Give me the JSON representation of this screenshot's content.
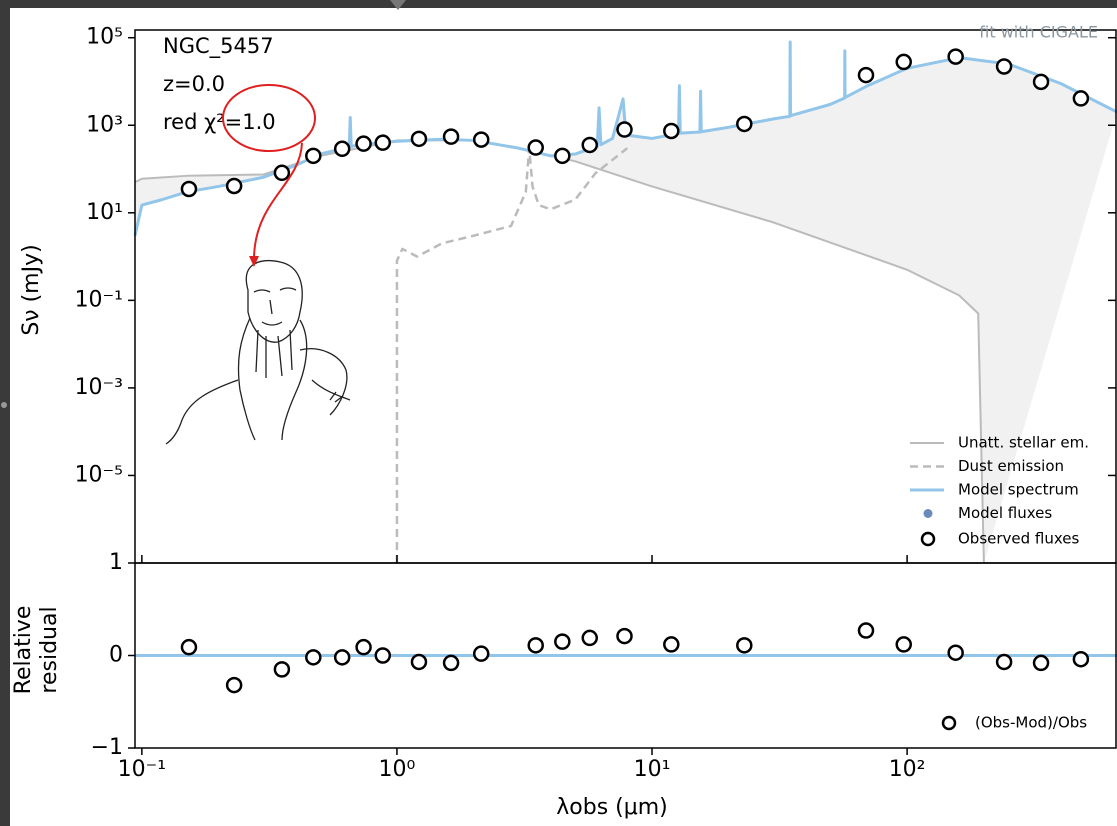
{
  "chart_data": [
    {
      "type": "line",
      "xscale": "log",
      "yscale": "log",
      "xlim": [
        0.094,
        665
      ],
      "ylim": [
        1e-07,
        150000
      ],
      "yticks": [
        {
          "value": 100000,
          "label": "10⁵"
        },
        {
          "value": 1000,
          "label": "10³"
        },
        {
          "value": 10,
          "label": "10¹"
        },
        {
          "value": 0.1,
          "label": "10⁻¹"
        },
        {
          "value": 0.001,
          "label": "10⁻³"
        },
        {
          "value": 1e-05,
          "label": "10⁻⁵"
        }
      ],
      "ylabel": "Sν (mJy)",
      "text_lines": [
        "NGC_5457",
        "z=0.0",
        "red χ²=1.0"
      ],
      "corner_note": "fit with CIGALE",
      "legend": "lower right",
      "series": [
        {
          "name": "Unatt. stellar em.",
          "color": "#bbbbbb",
          "style": "solid",
          "x": [
            0.094,
            0.1,
            0.15,
            0.3,
            0.5,
            1,
            2,
            3,
            5,
            10,
            30,
            100,
            160,
            190,
            200
          ],
          "values": [
            50,
            60,
            70,
            75,
            200,
            450,
            450,
            300,
            150,
            40,
            6,
            0.5,
            0.13,
            0.05,
            1e-07
          ]
        },
        {
          "name": "Dust emission",
          "color": "#bbbbbb",
          "style": "dashed",
          "x": [
            1,
            1,
            1.05,
            1.2,
            1.5,
            2,
            2.8,
            3.2,
            3.3,
            3.4,
            3.6,
            4,
            5,
            6,
            8
          ],
          "values": [
            1e-07,
            0.8,
            1.5,
            1,
            2,
            3,
            5,
            30,
            300,
            40,
            15,
            12,
            20,
            80,
            300
          ]
        },
        {
          "name": "Model spectrum",
          "color": "#92c5ea",
          "style": "thick",
          "x": [
            0.094,
            0.1,
            0.12,
            0.15,
            0.2,
            0.3,
            0.4,
            0.5,
            0.65,
            0.656,
            0.662,
            0.7,
            1.0,
            1.5,
            2,
            3,
            4,
            5,
            6.1,
            6.2,
            6.3,
            7,
            7.7,
            7.9,
            10,
            12.7,
            12.8,
            12.9,
            15.4,
            15.5,
            15.6,
            20,
            30,
            34.7,
            34.8,
            34.9,
            50,
            56.9,
            57,
            57.1,
            70,
            100,
            160,
            250,
            400,
            665
          ],
          "values": [
            3,
            15,
            20,
            30,
            40,
            65,
            120,
            220,
            320,
            1500,
            330,
            350,
            430,
            480,
            450,
            300,
            200,
            220,
            330,
            2500,
            360,
            500,
            4000,
            600,
            500,
            650,
            8000,
            660,
            700,
            6000,
            710,
            900,
            1400,
            1600,
            80000,
            1650,
            3000,
            4200,
            50000,
            4300,
            8000,
            20000,
            35000,
            25000,
            9000,
            2000
          ]
        },
        {
          "name": "Model fluxes",
          "color": "#6b8cba",
          "style": "dot"
        },
        {
          "name": "Observed fluxes",
          "color": "#000000",
          "style": "open-circle",
          "x": [
            0.153,
            0.23,
            0.354,
            0.47,
            0.61,
            0.74,
            0.88,
            1.22,
            1.63,
            2.14,
            3.5,
            4.45,
            5.7,
            7.8,
            11.9,
            23,
            69,
            97,
            155,
            240,
            335,
            480
          ],
          "values": [
            35,
            41,
            82,
            200,
            290,
            380,
            400,
            490,
            550,
            470,
            310,
            200,
            355,
            800,
            740,
            1070,
            14000,
            28000,
            37000,
            22000,
            9800,
            4100
          ]
        }
      ]
    },
    {
      "type": "scatter",
      "xscale": "log",
      "xlim": [
        0.094,
        665
      ],
      "ylim": [
        -1,
        1
      ],
      "yticks": [
        1,
        0,
        {
          "value": -1,
          "label": "−1"
        }
      ],
      "xticks": [
        {
          "value": 0.1,
          "label": "10⁻¹"
        },
        {
          "value": 1,
          "label": "10⁰"
        },
        {
          "value": 10,
          "label": "10¹"
        },
        {
          "value": 100,
          "label": "10²"
        }
      ],
      "xlabel": "λobs (μm)",
      "ylabel": [
        "Relative",
        "residual"
      ],
      "reference_line": {
        "value": 0,
        "color": "#92c5ea"
      },
      "series": [
        {
          "name": "(Obs-Mod)/Obs",
          "color": "#000000",
          "x": [
            0.153,
            0.23,
            0.354,
            0.47,
            0.61,
            0.74,
            0.88,
            1.22,
            1.63,
            2.14,
            3.5,
            4.45,
            5.7,
            7.8,
            11.9,
            23,
            69,
            97,
            155,
            240,
            335,
            480
          ],
          "values": [
            0.09,
            -0.32,
            -0.15,
            -0.02,
            -0.02,
            0.09,
            0.0,
            -0.07,
            -0.08,
            0.02,
            0.11,
            0.15,
            0.19,
            0.21,
            0.12,
            0.11,
            0.27,
            0.12,
            0.03,
            -0.07,
            -0.08,
            -0.04
          ]
        }
      ]
    }
  ]
}
